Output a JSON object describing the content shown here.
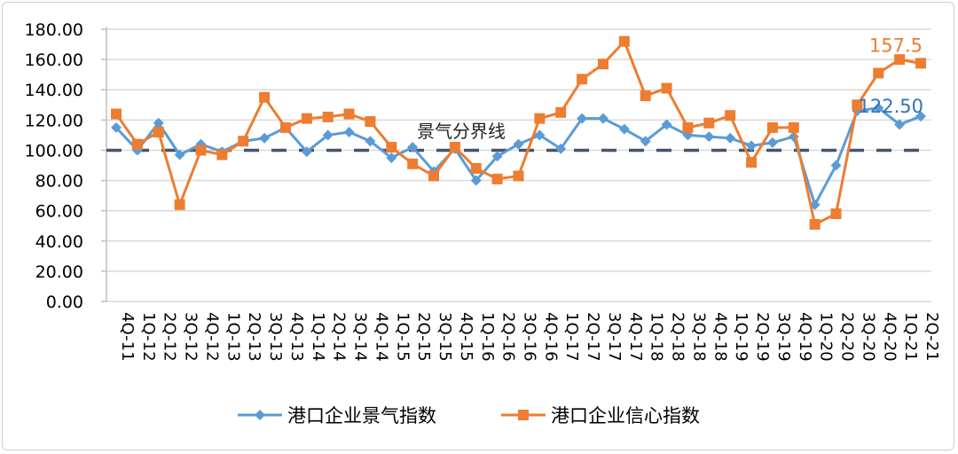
{
  "chart_data": {
    "type": "line",
    "title": "",
    "xlabel": "",
    "ylabel": "",
    "ylim": [
      0,
      180
    ],
    "yticks": [
      "0.00",
      "20.00",
      "40.00",
      "60.00",
      "80.00",
      "100.00",
      "120.00",
      "140.00",
      "160.00",
      "180.00"
    ],
    "grid": true,
    "legend_position": "bottom",
    "categories": [
      "4Q-11",
      "1Q-12",
      "2Q-12",
      "3Q-12",
      "4Q-12",
      "1Q-13",
      "2Q-13",
      "3Q-13",
      "4Q-13",
      "1Q-14",
      "2Q-14",
      "3Q-14",
      "4Q-14",
      "1Q-15",
      "2Q-15",
      "3Q-15",
      "4Q-15",
      "1Q-16",
      "2Q-16",
      "3Q-16",
      "4Q-16",
      "1Q-17",
      "2Q-17",
      "3Q-17",
      "4Q-17",
      "1Q-18",
      "2Q-18",
      "3Q-18",
      "4Q-18",
      "1Q-19",
      "2Q-19",
      "3Q-19",
      "4Q-19",
      "1Q-20",
      "2Q-20",
      "3Q-20",
      "4Q-20",
      "1Q-21",
      "2Q-21"
    ],
    "series": [
      {
        "name": "港口企业景气指数",
        "color": "#5B9BD5",
        "marker": "diamond",
        "values": [
          115,
          100,
          118,
          97,
          104,
          99,
          106,
          108,
          115,
          99,
          110,
          112,
          106,
          95,
          102,
          86,
          101,
          80,
          96,
          104,
          110,
          101,
          121,
          121,
          114,
          106,
          117,
          110,
          109,
          108,
          103,
          105,
          109,
          64,
          90,
          126,
          128,
          117,
          122.5
        ]
      },
      {
        "name": "港口企业信心指数",
        "color": "#ED7D31",
        "marker": "square",
        "values": [
          124,
          104,
          112,
          64,
          100,
          97,
          106,
          135,
          115,
          121,
          122,
          124,
          119,
          102,
          91,
          83,
          102,
          88,
          81,
          83,
          121,
          125,
          147,
          157,
          172,
          136,
          141,
          115,
          118,
          123,
          92,
          115,
          115,
          51,
          58,
          130,
          151,
          160,
          157.5
        ]
      }
    ],
    "reference_line": {
      "value": 100,
      "label": "景气分界线",
      "color": "#44546A"
    },
    "annotations": [
      {
        "text": "157.5",
        "series": "港口企业信心指数",
        "category": "2Q-21"
      },
      {
        "text": "122.50",
        "series": "港口企业景气指数",
        "category": "2Q-21"
      }
    ]
  }
}
